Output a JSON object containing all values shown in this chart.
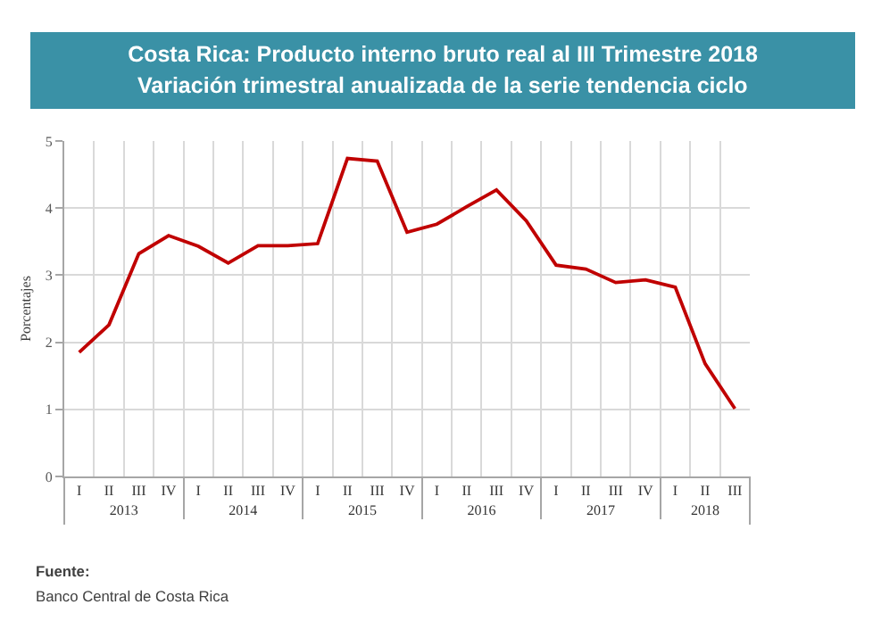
{
  "chart_data": {
    "type": "line",
    "title": "Costa Rica: Producto interno bruto real al III Trimestre 2018",
    "subtitle": "Variación trimestral anualizada de la serie tendencia ciclo",
    "ylabel": "Porcentajes",
    "annotations": [
      "Fuente:",
      "Banco Central de Costa Rica"
    ],
    "categories": [
      [
        "2013",
        "I"
      ],
      [
        null,
        "II"
      ],
      [
        null,
        "III"
      ],
      [
        null,
        "IV"
      ],
      [
        "2014",
        "I"
      ],
      [
        null,
        "II"
      ],
      [
        null,
        "III"
      ],
      [
        null,
        "IV"
      ],
      [
        "2015",
        "I"
      ],
      [
        null,
        "II"
      ],
      [
        null,
        "III"
      ],
      [
        null,
        "IV"
      ],
      [
        "2016",
        "I"
      ],
      [
        null,
        "II"
      ],
      [
        null,
        "III"
      ],
      [
        null,
        "IV"
      ],
      [
        "2017",
        "I"
      ],
      [
        null,
        "II"
      ],
      [
        null,
        "III"
      ],
      [
        null,
        "IV"
      ],
      [
        "2018",
        "I"
      ],
      [
        null,
        "II"
      ],
      [
        null,
        "III"
      ]
    ],
    "series": [
      {
        "color": "#c00000",
        "values": [
          1.85,
          2.26,
          3.32,
          3.59,
          3.43,
          3.18,
          3.44,
          3.44,
          3.47,
          4.74,
          4.7,
          3.64,
          3.76,
          4.02,
          4.27,
          3.81,
          3.15,
          3.09,
          2.89,
          2.93,
          2.82,
          1.68,
          1.01
        ]
      }
    ],
    "ylim": [
      0,
      5
    ],
    "yticks": [
      0,
      1,
      2,
      3,
      4,
      5
    ],
    "grid": true
  }
}
